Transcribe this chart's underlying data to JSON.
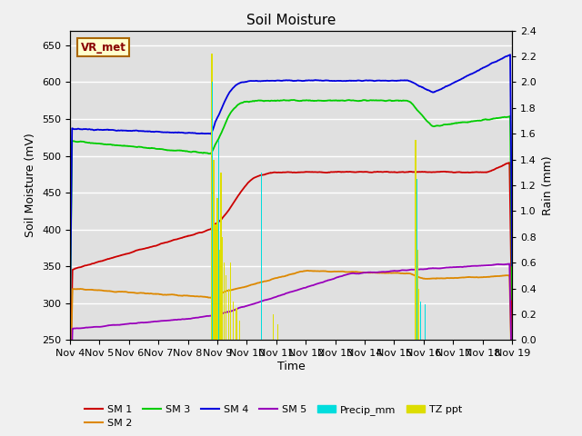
{
  "title": "Soil Moisture",
  "ylabel_left": "Soil Moisture (mV)",
  "ylabel_right": "Rain (mm)",
  "xlabel": "Time",
  "ylim_left": [
    250,
    670
  ],
  "ylim_right": [
    0.0,
    2.4
  ],
  "yticks_left": [
    250,
    300,
    350,
    400,
    450,
    500,
    550,
    600,
    650
  ],
  "yticks_right": [
    0.0,
    0.2,
    0.4,
    0.6,
    0.8,
    1.0,
    1.2,
    1.4,
    1.6,
    1.8,
    2.0,
    2.2,
    2.4
  ],
  "xtick_labels": [
    "Nov 4",
    "Nov 5",
    "Nov 6",
    "Nov 7",
    "Nov 8",
    "Nov 9",
    "Nov 10",
    "Nov 11",
    "Nov 12",
    "Nov 13",
    "Nov 14",
    "Nov 15",
    "Nov 16",
    "Nov 17",
    "Nov 18",
    "Nov 19"
  ],
  "annotation_text": "VR_met",
  "background_color": "#e0e0e0",
  "fig_color": "#f0f0f0",
  "grid_color": "#ffffff",
  "colors": {
    "SM1": "#cc0000",
    "SM2": "#dd8800",
    "SM3": "#00cc00",
    "SM4": "#0000dd",
    "SM5": "#9900bb",
    "Precip": "#00dddd",
    "TZ_ppt": "#dddd00"
  },
  "tz_x": [
    4.82,
    4.88,
    4.94,
    5.0,
    5.06,
    5.12,
    5.18,
    5.24,
    5.3,
    5.38,
    5.45,
    5.55,
    5.65,
    5.75,
    6.9,
    7.05,
    11.72,
    11.78,
    11.84,
    11.9
  ],
  "tz_h": [
    2.22,
    1.4,
    0.9,
    1.1,
    0.7,
    1.3,
    0.8,
    0.6,
    0.5,
    0.4,
    0.6,
    0.3,
    0.25,
    0.15,
    0.2,
    0.12,
    1.55,
    0.7,
    0.4,
    0.25
  ],
  "precip_x": [
    4.82,
    5.06,
    6.5,
    11.78,
    11.9,
    12.05
  ],
  "precip_h": [
    2.0,
    1.55,
    1.3,
    1.25,
    0.3,
    0.28
  ]
}
